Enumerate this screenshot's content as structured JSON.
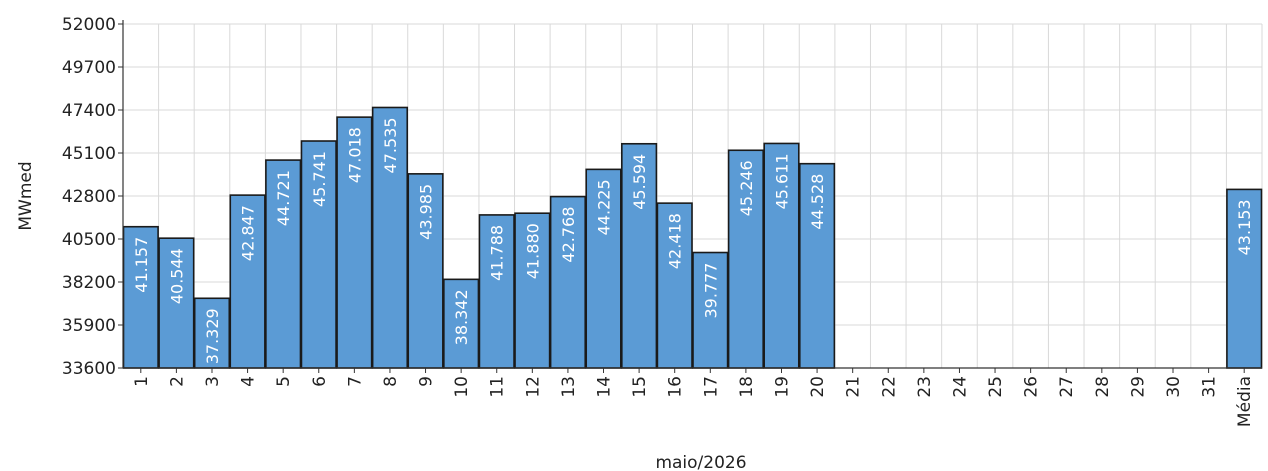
{
  "chart_data": {
    "type": "bar",
    "title": "",
    "xlabel": "maio/2026",
    "ylabel": "MWmed",
    "ylim": [
      33600,
      52000
    ],
    "yticks": [
      33600,
      35900,
      38200,
      40500,
      42800,
      45100,
      47400,
      49700,
      52000
    ],
    "grid": true,
    "bar_color": "#5b9bd5",
    "bar_edge_color": "#1a1a1a",
    "categories": [
      "1",
      "2",
      "3",
      "4",
      "5",
      "6",
      "7",
      "8",
      "9",
      "10",
      "11",
      "12",
      "13",
      "14",
      "15",
      "16",
      "17",
      "18",
      "19",
      "20",
      "21",
      "22",
      "23",
      "24",
      "25",
      "26",
      "27",
      "28",
      "29",
      "30",
      "31",
      "Média"
    ],
    "values": [
      41157,
      40544,
      37329,
      42847,
      44721,
      45741,
      47018,
      47535,
      43985,
      38342,
      41788,
      41880,
      42768,
      44225,
      45594,
      42418,
      39777,
      45246,
      45611,
      44528,
      null,
      null,
      null,
      null,
      null,
      null,
      null,
      null,
      null,
      null,
      null,
      43153
    ],
    "labels": [
      "41.157",
      "40.544",
      "37.329",
      "42.847",
      "44.721",
      "45.741",
      "47.018",
      "47.535",
      "43.985",
      "38.342",
      "41.788",
      "41.880",
      "42.768",
      "44.225",
      "45.594",
      "42.418",
      "39.777",
      "45.246",
      "45.611",
      "44.528",
      "",
      "",
      "",
      "",
      "",
      "",
      "",
      "",
      "",
      "",
      "",
      "43.153"
    ]
  }
}
